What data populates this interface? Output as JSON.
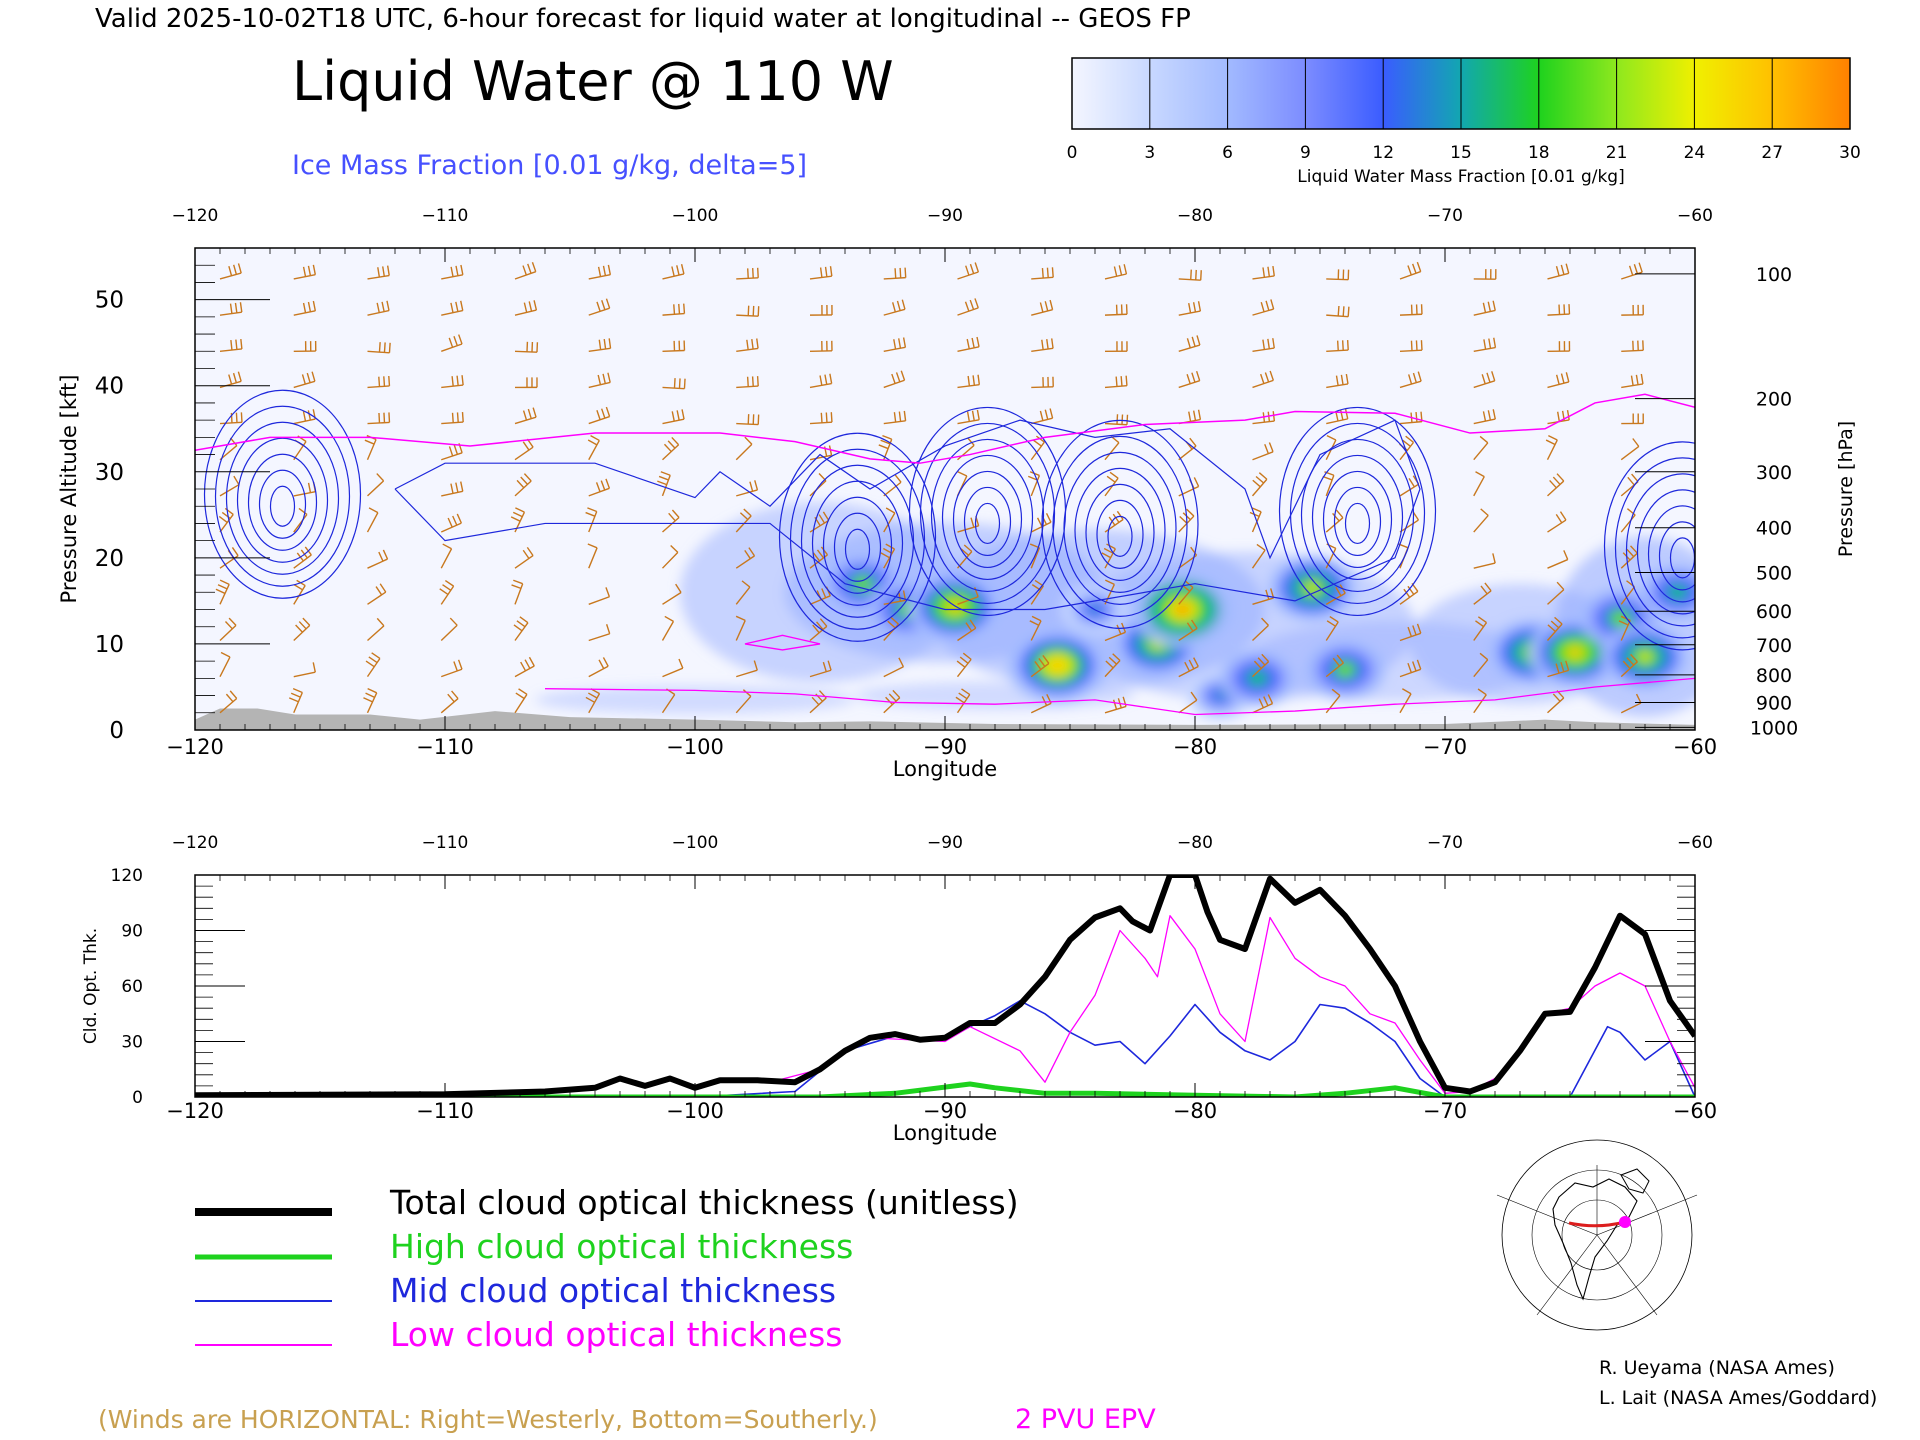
{
  "header": {
    "valid_line": "Valid 2025-10-02T18 UTC, 6-hour forecast for liquid water at longitudinal -- GEOS FP",
    "main_title": "Liquid Water @ 110 W",
    "ice_line": "Ice Mass Fraction [0.01 g/kg, delta=5]"
  },
  "colorbar": {
    "title": "Liquid Water Mass Fraction [0.01 g/kg]",
    "ticks": [
      "0",
      "3",
      "6",
      "9",
      "12",
      "15",
      "18",
      "21",
      "24",
      "27",
      "30"
    ],
    "colors": [
      "#f4f6ff",
      "#c8d8ff",
      "#a2baff",
      "#7c8cff",
      "#3a5cff",
      "#12a7b0",
      "#1ed21e",
      "#8ee81e",
      "#f0f000",
      "#ffc000",
      "#ff8000",
      "#ff2a00"
    ]
  },
  "colors": {
    "wind_barb": "#c8781e",
    "ice_contour": "#1e28dc",
    "pv_contour": "#ff00ff",
    "terrain": "#b4b4b4"
  },
  "annotations": {
    "winds_note": "(Winds are HORIZONTAL: Right=Westerly, Bottom=Southerly.)",
    "pv_label": "2 PVU EPV",
    "credit1": "R. Ueyama (NASA Ames)",
    "credit2": "L. Lait (NASA Ames/Goddard)"
  },
  "legend": [
    {
      "label": "Total cloud optical thickness (unitless)",
      "color": "#000000"
    },
    {
      "label": "High cloud optical thickness",
      "color": "#1ed21e"
    },
    {
      "label": "Mid cloud optical thickness",
      "color": "#1e28dc"
    },
    {
      "label": "Low cloud optical thickness",
      "color": "#ff00ff"
    }
  ],
  "chart_data": [
    {
      "type": "heatmap",
      "xlabel": "Longitude",
      "ylabel": "Pressure Altitude [kft]",
      "y2label": "Pressure [hPa]",
      "xlim": [
        -120,
        -60
      ],
      "ylim": [
        0,
        56
      ],
      "xticks": [
        "−120",
        "−110",
        "−100",
        "−90",
        "−80",
        "−70",
        "−60"
      ],
      "yticks": [
        "0",
        "10",
        "20",
        "30",
        "40",
        "50"
      ],
      "pressure_ticks": [
        {
          "label": "100",
          "kft": 53
        },
        {
          "label": "200",
          "kft": 38.5
        },
        {
          "label": "300",
          "kft": 30
        },
        {
          "label": "400",
          "kft": 23.5
        },
        {
          "label": "500",
          "kft": 18.3
        },
        {
          "label": "600",
          "kft": 13.8
        },
        {
          "label": "700",
          "kft": 9.9
        },
        {
          "label": "800",
          "kft": 6.4
        },
        {
          "label": "900",
          "kft": 3.2
        },
        {
          "label": "1000",
          "kft": 0.3
        }
      ],
      "liquid_water_cells": [
        {
          "lon": -93.3,
          "kft": 17,
          "value": 18
        },
        {
          "lon": -91.5,
          "kft": 14,
          "value": 18
        },
        {
          "lon": -89.6,
          "kft": 14.3,
          "value": 24
        },
        {
          "lon": -85.5,
          "kft": 7.5,
          "value": 26
        },
        {
          "lon": -84,
          "kft": 14,
          "value": 12
        },
        {
          "lon": -81.5,
          "kft": 10,
          "value": 21
        },
        {
          "lon": -80.5,
          "kft": 14,
          "value": 27
        },
        {
          "lon": -79,
          "kft": 4,
          "value": 12
        },
        {
          "lon": -77.5,
          "kft": 6,
          "value": 16
        },
        {
          "lon": -75.3,
          "kft": 16.5,
          "value": 21
        },
        {
          "lon": -74,
          "kft": 7,
          "value": 18
        },
        {
          "lon": -66.5,
          "kft": 9,
          "value": 21
        },
        {
          "lon": -64.8,
          "kft": 9,
          "value": 24
        },
        {
          "lon": -63,
          "kft": 13,
          "value": 18
        },
        {
          "lon": -62,
          "kft": 8.5,
          "value": 21
        },
        {
          "lon": -60.7,
          "kft": 16,
          "value": 15
        }
      ],
      "ice_contour_peaks": [
        {
          "lon": -116.5,
          "kft": 26
        },
        {
          "lon": -93.5,
          "kft": 21
        },
        {
          "lon": -88.3,
          "kft": 24
        },
        {
          "lon": -83,
          "kft": 22.5
        },
        {
          "lon": -73.5,
          "kft": 24
        },
        {
          "lon": -60.5,
          "kft": 20
        }
      ],
      "pv_2pvu_line": [
        [
          -120,
          32.5
        ],
        [
          -117,
          34
        ],
        [
          -113,
          34
        ],
        [
          -109,
          33
        ],
        [
          -104,
          34.5
        ],
        [
          -99,
          34.5
        ],
        [
          -96,
          33.5
        ],
        [
          -93,
          31.5
        ],
        [
          -91,
          31
        ],
        [
          -89,
          32
        ],
        [
          -86,
          34
        ],
        [
          -82,
          35.5
        ],
        [
          -78,
          36
        ],
        [
          -76,
          37
        ],
        [
          -72,
          36.8
        ],
        [
          -69,
          34.5
        ],
        [
          -66,
          35
        ],
        [
          -64,
          38
        ],
        [
          -62,
          39
        ],
        [
          -60,
          37.5
        ]
      ]
    },
    {
      "type": "line",
      "xlabel": "Longitude",
      "ylabel": "Cld. Opt. Thk.",
      "xlim": [
        -120,
        -60
      ],
      "ylim": [
        0,
        120
      ],
      "xticks": [
        "−120",
        "−110",
        "−100",
        "−90",
        "−80",
        "−70",
        "−60"
      ],
      "yticks": [
        "0",
        "30",
        "60",
        "90",
        "120"
      ],
      "series": [
        {
          "name": "Total cloud optical thickness (unitless)",
          "color": "#000000",
          "points": [
            [
              -120,
              1
            ],
            [
              -110,
              1.5
            ],
            [
              -106,
              3
            ],
            [
              -104,
              5
            ],
            [
              -103,
              10
            ],
            [
              -102,
              6
            ],
            [
              -101,
              10
            ],
            [
              -100,
              5
            ],
            [
              -99,
              9
            ],
            [
              -97.5,
              9
            ],
            [
              -96,
              8
            ],
            [
              -95,
              15
            ],
            [
              -94,
              25
            ],
            [
              -93,
              32
            ],
            [
              -92,
              34
            ],
            [
              -91,
              31
            ],
            [
              -90,
              32
            ],
            [
              -89,
              40
            ],
            [
              -88,
              40
            ],
            [
              -87,
              50
            ],
            [
              -86,
              65
            ],
            [
              -85,
              85
            ],
            [
              -84,
              97
            ],
            [
              -83,
              102
            ],
            [
              -82.5,
              95
            ],
            [
              -81.8,
              90
            ],
            [
              -81,
              120
            ],
            [
              -80,
              120
            ],
            [
              -79.5,
              100
            ],
            [
              -79,
              85
            ],
            [
              -78,
              80
            ],
            [
              -77,
              118
            ],
            [
              -76,
              105
            ],
            [
              -75,
              112
            ],
            [
              -74,
              98
            ],
            [
              -73,
              80
            ],
            [
              -72,
              60
            ],
            [
              -71,
              30
            ],
            [
              -70,
              5
            ],
            [
              -69,
              3
            ],
            [
              -68,
              8
            ],
            [
              -67,
              25
            ],
            [
              -66,
              45
            ],
            [
              -65,
              46
            ],
            [
              -64,
              70
            ],
            [
              -63,
              98
            ],
            [
              -62,
              88
            ],
            [
              -61,
              52
            ],
            [
              -60,
              33
            ]
          ]
        },
        {
          "name": "High cloud optical thickness",
          "color": "#1ed21e",
          "points": [
            [
              -120,
              0
            ],
            [
              -95,
              0
            ],
            [
              -92,
              2
            ],
            [
              -89,
              7
            ],
            [
              -88,
              5
            ],
            [
              -86,
              2
            ],
            [
              -84,
              2
            ],
            [
              -80,
              1
            ],
            [
              -76,
              0
            ],
            [
              -74,
              2
            ],
            [
              -72,
              5
            ],
            [
              -70,
              0
            ],
            [
              -60,
              0
            ]
          ]
        },
        {
          "name": "Mid cloud optical thickness",
          "color": "#1e28dc",
          "points": [
            [
              -120,
              0
            ],
            [
              -100,
              0
            ],
            [
              -96,
              3
            ],
            [
              -94,
              25
            ],
            [
              -92,
              33
            ],
            [
              -90,
              31
            ],
            [
              -89,
              38
            ],
            [
              -88,
              44
            ],
            [
              -87,
              52
            ],
            [
              -86,
              45
            ],
            [
              -85,
              35
            ],
            [
              -84,
              28
            ],
            [
              -83,
              30
            ],
            [
              -82,
              18
            ],
            [
              -81,
              33
            ],
            [
              -80,
              50
            ],
            [
              -79,
              35
            ],
            [
              -78,
              25
            ],
            [
              -77,
              20
            ],
            [
              -76,
              30
            ],
            [
              -75,
              50
            ],
            [
              -74,
              48
            ],
            [
              -73,
              40
            ],
            [
              -72,
              30
            ],
            [
              -71,
              10
            ],
            [
              -70,
              0
            ],
            [
              -65,
              0
            ],
            [
              -63.5,
              38
            ],
            [
              -63,
              35
            ],
            [
              -62,
              20
            ],
            [
              -61,
              30
            ],
            [
              -60,
              0
            ]
          ]
        },
        {
          "name": "Low cloud optical thickness",
          "color": "#ff00ff",
          "points": [
            [
              -120,
              1
            ],
            [
              -106,
              3
            ],
            [
              -104,
              5
            ],
            [
              -103,
              10
            ],
            [
              -102,
              6
            ],
            [
              -101,
              10
            ],
            [
              -100,
              5
            ],
            [
              -99,
              9
            ],
            [
              -97,
              8
            ],
            [
              -95,
              15
            ],
            [
              -94,
              25
            ],
            [
              -93,
              32
            ],
            [
              -90,
              30
            ],
            [
              -89,
              38
            ],
            [
              -87,
              25
            ],
            [
              -86,
              8
            ],
            [
              -85,
              35
            ],
            [
              -84,
              55
            ],
            [
              -83,
              90
            ],
            [
              -82,
              75
            ],
            [
              -81.5,
              65
            ],
            [
              -81,
              98
            ],
            [
              -80,
              80
            ],
            [
              -79,
              45
            ],
            [
              -78,
              30
            ],
            [
              -77,
              97
            ],
            [
              -76,
              75
            ],
            [
              -75,
              65
            ],
            [
              -74,
              60
            ],
            [
              -73,
              45
            ],
            [
              -72,
              40
            ],
            [
              -71,
              20
            ],
            [
              -70,
              2
            ],
            [
              -69,
              3
            ],
            [
              -68,
              10
            ],
            [
              -67,
              25
            ],
            [
              -66,
              45
            ],
            [
              -65,
              48
            ],
            [
              -64,
              60
            ],
            [
              -63,
              67
            ],
            [
              -62,
              60
            ],
            [
              -61,
              30
            ],
            [
              -60,
              5
            ]
          ]
        }
      ]
    }
  ]
}
